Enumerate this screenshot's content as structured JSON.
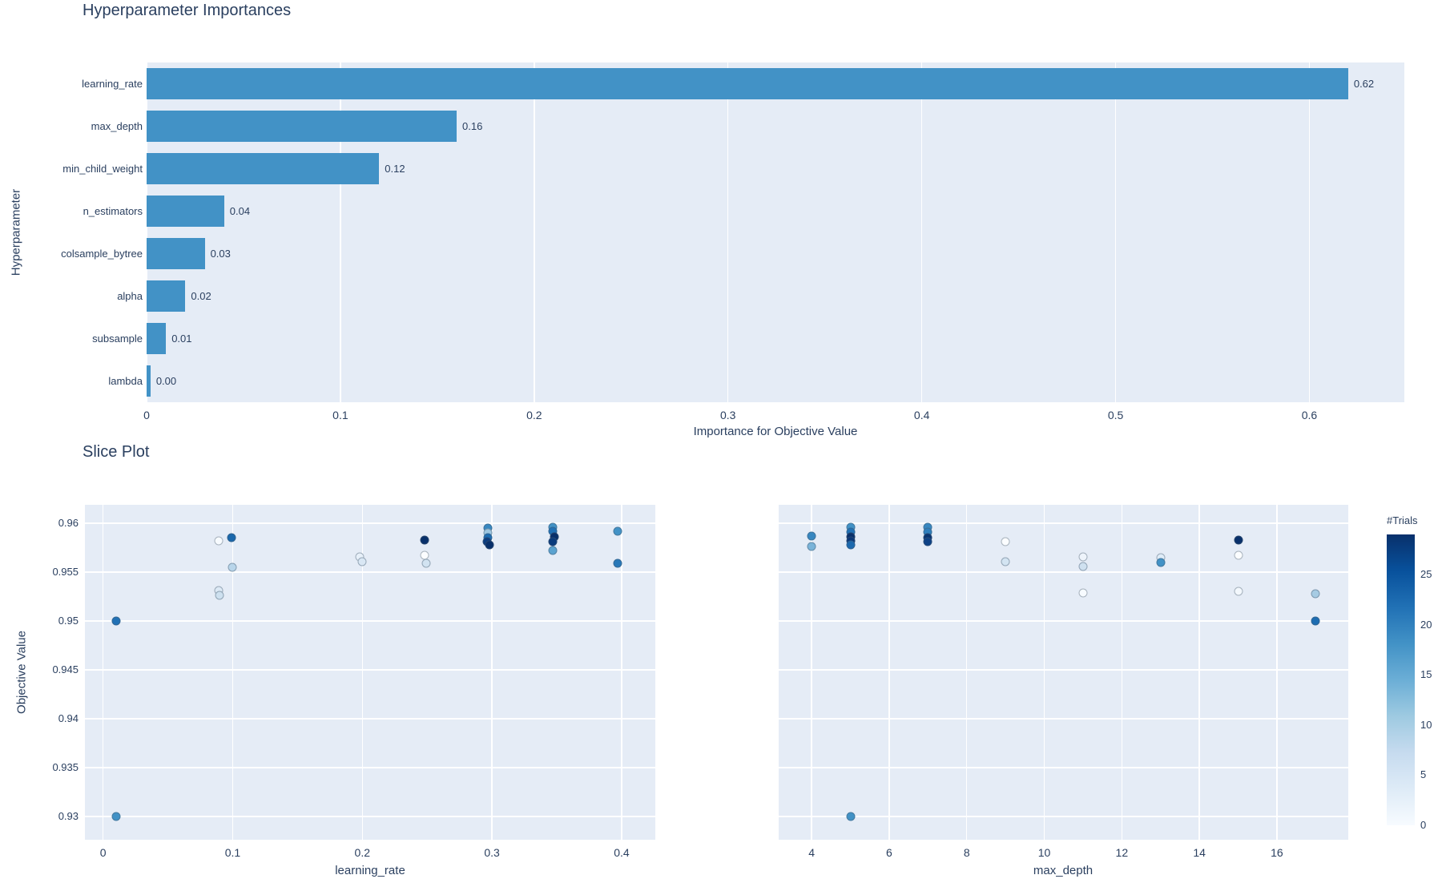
{
  "page": {
    "bar_title": "Hyperparameter Importances",
    "slice_title": "Slice Plot"
  },
  "colors": {
    "bar": "#4292c6",
    "plot_bg": "#e5ecf6",
    "grid": "#ffffff",
    "text": "#2a3f5f",
    "colorbar_gradient": [
      "#08306b",
      "#08519c",
      "#2171b5",
      "#4292c6",
      "#6baed6",
      "#9ecae1",
      "#c6dbef",
      "#deebf7",
      "#f7fbff"
    ]
  },
  "chart_data": [
    {
      "id": "importance-bars",
      "type": "bar",
      "orientation": "horizontal",
      "title": "Hyperparameter Importances",
      "xlabel": "Importance for Objective Value",
      "ylabel": "Hyperparameter",
      "categories": [
        "learning_rate",
        "max_depth",
        "min_child_weight",
        "n_estimators",
        "colsample_bytree",
        "alpha",
        "subsample",
        "lambda"
      ],
      "values": [
        0.62,
        0.16,
        0.12,
        0.04,
        0.03,
        0.02,
        0.01,
        0.002
      ],
      "value_labels": [
        "0.62",
        "0.16",
        "0.12",
        "0.04",
        "0.03",
        "0.02",
        "0.01",
        "0.00"
      ],
      "xlim": [
        0,
        0.649
      ],
      "xticks": [
        0,
        0.1,
        0.2,
        0.3,
        0.4,
        0.5,
        0.6
      ],
      "xtick_labels": [
        "0",
        "0.1",
        "0.2",
        "0.3",
        "0.4",
        "0.5",
        "0.6"
      ],
      "grid": true,
      "legend": "none"
    },
    {
      "id": "slice-learning-rate",
      "type": "scatter",
      "title": "Slice Plot",
      "xlabel": "learning_rate",
      "ylabel": "Objective Value",
      "xlim": [
        -0.014,
        0.426
      ],
      "ylim": [
        0.9276,
        0.9619
      ],
      "xticks": [
        0,
        0.1,
        0.2,
        0.3,
        0.4
      ],
      "xtick_labels": [
        "0",
        "0.1",
        "0.2",
        "0.3",
        "0.4"
      ],
      "yticks": [
        0.93,
        0.935,
        0.94,
        0.945,
        0.95,
        0.955,
        0.96
      ],
      "ytick_labels": [
        "0.93",
        "0.935",
        "0.94",
        "0.945",
        "0.95",
        "0.955",
        "0.96"
      ],
      "show_ytick_labels": true,
      "grid": true,
      "points": [
        {
          "x": 0.01,
          "y": 0.95,
          "c": "#2171b5"
        },
        {
          "x": 0.01,
          "y": 0.93,
          "c": "#4292c6"
        },
        {
          "x": 0.089,
          "y": 0.9582,
          "c": "#f7fbff"
        },
        {
          "x": 0.099,
          "y": 0.9585,
          "c": "#1a68ac"
        },
        {
          "x": 0.1,
          "y": 0.9555,
          "c": "#b8d5ea"
        },
        {
          "x": 0.089,
          "y": 0.9531,
          "c": "#dce9f5"
        },
        {
          "x": 0.09,
          "y": 0.9526,
          "c": "#cde0ef"
        },
        {
          "x": 0.198,
          "y": 0.9566,
          "c": "#e7f0f9"
        },
        {
          "x": 0.2,
          "y": 0.9561,
          "c": "#d9e7f4"
        },
        {
          "x": 0.248,
          "y": 0.9583,
          "c": "#08306b"
        },
        {
          "x": 0.248,
          "y": 0.9567,
          "c": "#fbfdff"
        },
        {
          "x": 0.249,
          "y": 0.9559,
          "c": "#d2e3f1"
        },
        {
          "x": 0.297,
          "y": 0.9595,
          "c": "#3787c0"
        },
        {
          "x": 0.297,
          "y": 0.959,
          "c": "#9dc6e0"
        },
        {
          "x": 0.297,
          "y": 0.9585,
          "c": "#1d6cb1"
        },
        {
          "x": 0.296,
          "y": 0.9581,
          "c": "#0b3d80"
        },
        {
          "x": 0.298,
          "y": 0.9578,
          "c": "#08306b"
        },
        {
          "x": 0.347,
          "y": 0.9596,
          "c": "#4292c6"
        },
        {
          "x": 0.347,
          "y": 0.9592,
          "c": "#2171b5"
        },
        {
          "x": 0.348,
          "y": 0.9586,
          "c": "#08306b"
        },
        {
          "x": 0.347,
          "y": 0.9581,
          "c": "#0a3b7d"
        },
        {
          "x": 0.347,
          "y": 0.9572,
          "c": "#5ba3d0"
        },
        {
          "x": 0.397,
          "y": 0.9592,
          "c": "#4292c6"
        },
        {
          "x": 0.397,
          "y": 0.9559,
          "c": "#2878b8"
        }
      ]
    },
    {
      "id": "slice-max-depth",
      "type": "scatter",
      "title": "Slice Plot",
      "xlabel": "max_depth",
      "ylabel": "",
      "xlim": [
        3.15,
        17.84
      ],
      "ylim": [
        0.9276,
        0.9619
      ],
      "xticks": [
        4,
        6,
        8,
        10,
        12,
        14,
        16
      ],
      "xtick_labels": [
        "4",
        "6",
        "8",
        "10",
        "12",
        "14",
        "16"
      ],
      "yticks": [
        0.93,
        0.935,
        0.94,
        0.945,
        0.95,
        0.955,
        0.96
      ],
      "ytick_labels": [
        "0.93",
        "0.935",
        "0.94",
        "0.945",
        "0.95",
        "0.955",
        "0.96"
      ],
      "show_ytick_labels": false,
      "grid": true,
      "points": [
        {
          "x": 4,
          "y": 0.9587,
          "c": "#3787c0"
        },
        {
          "x": 4,
          "y": 0.9576,
          "c": "#7ab4d9"
        },
        {
          "x": 5,
          "y": 0.9596,
          "c": "#4292c6"
        },
        {
          "x": 5,
          "y": 0.9591,
          "c": "#2171b5"
        },
        {
          "x": 5,
          "y": 0.9586,
          "c": "#08306b"
        },
        {
          "x": 5,
          "y": 0.9582,
          "c": "#0a3778"
        },
        {
          "x": 5,
          "y": 0.9578,
          "c": "#1c69ae"
        },
        {
          "x": 5,
          "y": 0.93,
          "c": "#4292c6"
        },
        {
          "x": 7,
          "y": 0.9596,
          "c": "#3787c0"
        },
        {
          "x": 7,
          "y": 0.9591,
          "c": "#2f7fbc"
        },
        {
          "x": 7,
          "y": 0.9585,
          "c": "#083471"
        },
        {
          "x": 7,
          "y": 0.9581,
          "c": "#0d4186"
        },
        {
          "x": 9,
          "y": 0.9581,
          "c": "#fbfdff"
        },
        {
          "x": 9,
          "y": 0.9561,
          "c": "#d3e4f2"
        },
        {
          "x": 11,
          "y": 0.9566,
          "c": "#eef4fb"
        },
        {
          "x": 11,
          "y": 0.9556,
          "c": "#cfe1f0"
        },
        {
          "x": 11,
          "y": 0.9529,
          "c": "#f7fbff"
        },
        {
          "x": 13,
          "y": 0.9565,
          "c": "#dfecf7"
        },
        {
          "x": 13,
          "y": 0.956,
          "c": "#4292c6"
        },
        {
          "x": 15,
          "y": 0.9583,
          "c": "#08306b"
        },
        {
          "x": 15,
          "y": 0.9567,
          "c": "#fbfdff"
        },
        {
          "x": 15,
          "y": 0.953,
          "c": "#f3f8fd"
        },
        {
          "x": 17,
          "y": 0.9528,
          "c": "#a6cbe3"
        },
        {
          "x": 17,
          "y": 0.95,
          "c": "#1d6db2"
        }
      ]
    }
  ],
  "colorbar": {
    "title": "#Trials",
    "range": [
      0,
      29
    ],
    "ticks": [
      0,
      5,
      10,
      15,
      20,
      25
    ],
    "tick_labels": [
      "0",
      "5",
      "10",
      "15",
      "20",
      "25"
    ]
  }
}
